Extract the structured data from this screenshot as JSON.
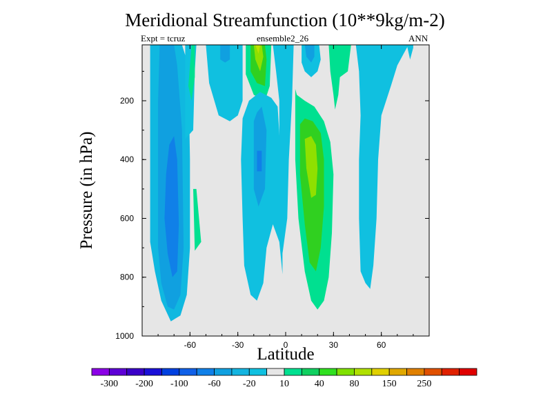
{
  "chart_data": {
    "type": "heatmap",
    "title": "Meridional Streamfunction (10**9kg/m-2)",
    "left_string": "Expt = tcruz",
    "center_string": "ensemble2_26",
    "right_string": "ANN",
    "xlabel": "Latitude",
    "ylabel": "Pressure (in hPa)",
    "xlim": [
      -90,
      90
    ],
    "ylim": [
      1000,
      10
    ],
    "y_reversed": true,
    "x_ticks": [
      "-60",
      "-30",
      "0",
      "30",
      "60"
    ],
    "x_tick_values": [
      -60,
      -30,
      0,
      30,
      60
    ],
    "y_ticks": [
      "200",
      "400",
      "600",
      "800",
      "1000"
    ],
    "y_tick_values": [
      200,
      400,
      600,
      800,
      1000
    ],
    "background_color": "#e6e6e6",
    "colorbar": {
      "labels": [
        "-300",
        "-200",
        "-100",
        "-60",
        "-20",
        "10",
        "40",
        "80",
        "150",
        "250"
      ],
      "colors": [
        "#8b00e6",
        "#5d00d6",
        "#3a00c8",
        "#1a10d8",
        "#0040e0",
        "#1060e8",
        "#1080e8",
        "#10a0e0",
        "#14b4e0",
        "#10c0e0",
        "#e6e6e6",
        "#00e090",
        "#10d060",
        "#30e020",
        "#80e000",
        "#b0e000",
        "#e0d000",
        "#e0a800",
        "#e08000",
        "#e05000",
        "#e02000",
        "#e00000"
      ]
    },
    "regions": [
      {
        "fill": "#10b8e0",
        "points": [
          [
            -85,
            680
          ],
          [
            -82,
            780
          ],
          [
            -78,
            880
          ],
          [
            -72,
            950
          ],
          [
            -66,
            930
          ],
          [
            -62,
            860
          ],
          [
            -60,
            700
          ],
          [
            -60,
            400
          ],
          [
            -61,
            80
          ],
          [
            -65,
            10
          ],
          [
            -85,
            10
          ],
          [
            -85,
            300
          ]
        ]
      },
      {
        "fill": "#10a0e0",
        "points": [
          [
            -80,
            700
          ],
          [
            -78,
            820
          ],
          [
            -74,
            900
          ],
          [
            -70,
            910
          ],
          [
            -66,
            860
          ],
          [
            -64,
            700
          ],
          [
            -65,
            300
          ],
          [
            -68,
            80
          ],
          [
            -70,
            10
          ],
          [
            -79,
            10
          ],
          [
            -80,
            200
          ]
        ]
      },
      {
        "fill": "#1080e8",
        "points": [
          [
            -76,
            600
          ],
          [
            -74,
            720
          ],
          [
            -71,
            800
          ],
          [
            -68,
            780
          ],
          [
            -67,
            620
          ],
          [
            -68,
            400
          ],
          [
            -70,
            320
          ],
          [
            -73,
            350
          ],
          [
            -75,
            450
          ]
        ]
      },
      {
        "fill": "#10c0e0",
        "points": [
          [
            -63,
            10
          ],
          [
            -63,
            330
          ],
          [
            -58,
            300
          ],
          [
            -57,
            100
          ],
          [
            -56,
            10
          ]
        ]
      },
      {
        "fill": "#00e090",
        "points": [
          [
            -59,
            10
          ],
          [
            -61,
            150
          ],
          [
            -59,
            200
          ],
          [
            -57,
            120
          ],
          [
            -57,
            10
          ]
        ]
      },
      {
        "fill": "#10c0e0",
        "points": [
          [
            -50,
            10
          ],
          [
            -48,
            140
          ],
          [
            -42,
            250
          ],
          [
            -35,
            270
          ],
          [
            -30,
            250
          ],
          [
            -27,
            200
          ],
          [
            -27,
            10
          ]
        ]
      },
      {
        "fill": "#10a0e0",
        "points": [
          [
            -41,
            10
          ],
          [
            -41,
            60
          ],
          [
            -38,
            70
          ],
          [
            -35,
            60
          ],
          [
            -35,
            10
          ]
        ]
      },
      {
        "fill": "#00e090",
        "points": [
          [
            -58,
            500
          ],
          [
            -57,
            710
          ],
          [
            -53,
            680
          ],
          [
            -56,
            500
          ]
        ]
      },
      {
        "fill": "#00e090",
        "points": [
          [
            -25,
            10
          ],
          [
            -25,
            110
          ],
          [
            -20,
            180
          ],
          [
            -13,
            200
          ],
          [
            -10,
            150
          ],
          [
            -9,
            10
          ]
        ]
      },
      {
        "fill": "#30d020",
        "points": [
          [
            -22,
            10
          ],
          [
            -22,
            100
          ],
          [
            -18,
            140
          ],
          [
            -13,
            150
          ],
          [
            -12,
            60
          ],
          [
            -13,
            10
          ]
        ]
      },
      {
        "fill": "#90e000",
        "points": [
          [
            -20,
            10
          ],
          [
            -19,
            60
          ],
          [
            -16,
            100
          ],
          [
            -14,
            50
          ],
          [
            -15,
            10
          ]
        ]
      },
      {
        "fill": "#c0e000",
        "points": [
          [
            -19,
            10
          ],
          [
            -17,
            40
          ],
          [
            -16,
            10
          ]
        ]
      },
      {
        "fill": "#10c0e0",
        "points": [
          [
            -28,
            400
          ],
          [
            -27,
            600
          ],
          [
            -26,
            760
          ],
          [
            -22,
            860
          ],
          [
            -18,
            880
          ],
          [
            -14,
            820
          ],
          [
            -12,
            700
          ],
          [
            -8,
            620
          ],
          [
            -4,
            680
          ],
          [
            -2,
            790
          ],
          [
            -2,
            650
          ],
          [
            -3,
            400
          ],
          [
            -5,
            220
          ],
          [
            -9,
            190
          ],
          [
            -16,
            170
          ],
          [
            -23,
            200
          ],
          [
            -27,
            260
          ]
        ]
      },
      {
        "fill": "#10a0e0",
        "points": [
          [
            -20,
            270
          ],
          [
            -20,
            500
          ],
          [
            -17,
            560
          ],
          [
            -13,
            500
          ],
          [
            -12,
            300
          ],
          [
            -15,
            220
          ],
          [
            -18,
            240
          ]
        ]
      },
      {
        "fill": "#1080e8",
        "points": [
          [
            -18,
            370
          ],
          [
            -18,
            440
          ],
          [
            -15,
            440
          ],
          [
            -15,
            370
          ]
        ]
      },
      {
        "fill": "#10c0e0",
        "points": [
          [
            -8,
            10
          ],
          [
            -6,
            100
          ],
          [
            -4,
            200
          ],
          [
            -4,
            600
          ],
          [
            -2,
            720
          ],
          [
            1,
            600
          ],
          [
            2,
            400
          ],
          [
            4,
            200
          ],
          [
            5,
            10
          ]
        ]
      },
      {
        "fill": "#10c0e0",
        "points": [
          [
            10,
            10
          ],
          [
            10,
            70
          ],
          [
            12,
            100
          ],
          [
            16,
            120
          ],
          [
            20,
            100
          ],
          [
            22,
            60
          ],
          [
            21,
            10
          ]
        ]
      },
      {
        "fill": "#10a0e0",
        "points": [
          [
            12,
            10
          ],
          [
            13,
            50
          ],
          [
            16,
            70
          ],
          [
            18,
            50
          ],
          [
            18,
            10
          ]
        ]
      },
      {
        "fill": "#00e090",
        "points": [
          [
            6,
            160
          ],
          [
            6,
            400
          ],
          [
            8,
            600
          ],
          [
            12,
            780
          ],
          [
            16,
            880
          ],
          [
            20,
            910
          ],
          [
            24,
            880
          ],
          [
            27,
            800
          ],
          [
            29,
            650
          ],
          [
            30,
            450
          ],
          [
            28,
            340
          ],
          [
            24,
            270
          ],
          [
            18,
            220
          ],
          [
            12,
            200
          ],
          [
            7,
            180
          ]
        ]
      },
      {
        "fill": "#30d020",
        "points": [
          [
            9,
            280
          ],
          [
            9,
            450
          ],
          [
            12,
            620
          ],
          [
            15,
            750
          ],
          [
            19,
            780
          ],
          [
            22,
            700
          ],
          [
            24,
            560
          ],
          [
            24,
            400
          ],
          [
            22,
            310
          ],
          [
            17,
            270
          ],
          [
            12,
            260
          ]
        ]
      },
      {
        "fill": "#90e000",
        "points": [
          [
            12,
            330
          ],
          [
            13,
            430
          ],
          [
            16,
            530
          ],
          [
            19,
            520
          ],
          [
            20,
            430
          ],
          [
            19,
            350
          ],
          [
            16,
            320
          ]
        ]
      },
      {
        "fill": "#00e090",
        "points": [
          [
            27,
            10
          ],
          [
            28,
            100
          ],
          [
            30,
            180
          ],
          [
            31,
            230
          ],
          [
            33,
            180
          ],
          [
            34,
            120
          ],
          [
            39,
            100
          ],
          [
            41,
            10
          ]
        ]
      },
      {
        "fill": "#10c0e0",
        "points": [
          [
            44,
            10
          ],
          [
            46,
            100
          ],
          [
            47,
            250
          ],
          [
            46,
            400
          ],
          [
            46,
            600
          ],
          [
            47,
            780
          ],
          [
            50,
            820
          ],
          [
            53,
            840
          ],
          [
            55,
            760
          ],
          [
            57,
            600
          ],
          [
            58,
            400
          ],
          [
            60,
            250
          ],
          [
            66,
            150
          ],
          [
            70,
            80
          ],
          [
            74,
            40
          ],
          [
            77,
            10
          ]
        ]
      },
      {
        "fill": "#10c0e0",
        "points": [
          [
            76,
            10
          ],
          [
            78,
            60
          ],
          [
            80,
            20
          ],
          [
            80,
            10
          ]
        ]
      }
    ]
  }
}
